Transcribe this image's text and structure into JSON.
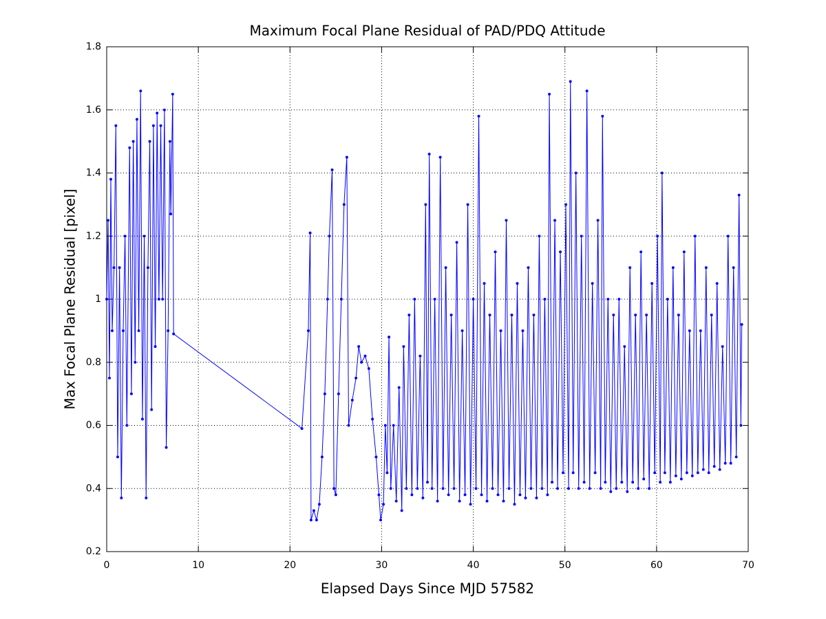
{
  "chart_data": {
    "type": "line",
    "title": "Maximum Focal Plane Residual of PAD/PDQ Attitude",
    "x_label": "Elapsed Days Since MJD 57582",
    "y_label": "Max Focal Plane Residual [pixel]",
    "xlim": [
      0,
      70
    ],
    "ylim": [
      0.2,
      1.8
    ],
    "xticks": [
      0,
      10,
      20,
      30,
      40,
      50,
      60,
      70
    ],
    "yticks": [
      0.2,
      0.4,
      0.6,
      0.8,
      1,
      1.2,
      1.4,
      1.6,
      1.8
    ],
    "grid": true,
    "series": [
      {
        "color": "#0000ff",
        "x": [
          0,
          0.15,
          0.3,
          0.45,
          0.6,
          0.8,
          1.0,
          1.2,
          1.4,
          1.6,
          1.8,
          2.0,
          2.2,
          2.5,
          2.7,
          2.9,
          3.1,
          3.3,
          3.5,
          3.7,
          3.9,
          4.1,
          4.3,
          4.5,
          4.7,
          4.9,
          5.1,
          5.3,
          5.5,
          5.7,
          5.9,
          6.1,
          6.3,
          6.5,
          6.7,
          6.9,
          7.0,
          7.2,
          7.3,
          21.3,
          22.0,
          22.2,
          22.3,
          22.6,
          22.9,
          23.2,
          23.5,
          23.8,
          24.1,
          24.3,
          24.6,
          24.8,
          25.0,
          25.3,
          25.6,
          25.9,
          26.2,
          26.4,
          26.8,
          27.2,
          27.5,
          27.8,
          28.2,
          28.6,
          29.0,
          29.4,
          29.7,
          29.9,
          30.2,
          30.4,
          30.6,
          30.8,
          31.0,
          31.3,
          31.6,
          31.9,
          32.2,
          32.4,
          32.7,
          33.0,
          33.3,
          33.6,
          33.9,
          34.2,
          34.5,
          34.8,
          35.0,
          35.2,
          35.5,
          35.8,
          36.1,
          36.4,
          36.7,
          37.0,
          37.3,
          37.6,
          37.9,
          38.2,
          38.5,
          38.8,
          39.1,
          39.4,
          39.7,
          40.0,
          40.3,
          40.6,
          40.9,
          41.2,
          41.5,
          41.8,
          42.1,
          42.4,
          42.7,
          43.0,
          43.3,
          43.6,
          43.9,
          44.2,
          44.5,
          44.8,
          45.1,
          45.4,
          45.7,
          46.0,
          46.3,
          46.6,
          46.9,
          47.2,
          47.5,
          47.8,
          48.1,
          48.3,
          48.6,
          48.9,
          49.2,
          49.5,
          49.8,
          50.1,
          50.4,
          50.6,
          50.9,
          51.2,
          51.5,
          51.8,
          52.1,
          52.4,
          52.7,
          53.0,
          53.3,
          53.6,
          53.9,
          54.1,
          54.4,
          54.7,
          55.0,
          55.3,
          55.6,
          55.9,
          56.2,
          56.5,
          56.8,
          57.1,
          57.4,
          57.7,
          58.0,
          58.3,
          58.6,
          58.9,
          59.2,
          59.5,
          59.8,
          60.1,
          60.4,
          60.6,
          60.9,
          61.2,
          61.5,
          61.8,
          62.1,
          62.4,
          62.7,
          63.0,
          63.3,
          63.6,
          63.9,
          64.2,
          64.5,
          64.8,
          65.1,
          65.4,
          65.7,
          66.0,
          66.3,
          66.6,
          66.9,
          67.2,
          67.5,
          67.8,
          68.1,
          68.4,
          68.7,
          69.0,
          69.2,
          69.3
        ],
        "values": [
          1.0,
          1.25,
          0.75,
          1.38,
          0.9,
          1.1,
          1.55,
          0.5,
          1.1,
          0.37,
          0.9,
          1.2,
          0.6,
          1.48,
          0.7,
          1.5,
          0.8,
          1.57,
          0.9,
          1.66,
          0.62,
          1.2,
          0.37,
          1.1,
          1.5,
          0.65,
          1.55,
          0.85,
          1.59,
          1.0,
          1.55,
          1.0,
          1.6,
          0.53,
          0.9,
          1.5,
          1.27,
          1.65,
          0.89,
          0.59,
          0.9,
          1.21,
          0.3,
          0.33,
          0.3,
          0.35,
          0.5,
          0.7,
          1.0,
          1.2,
          1.41,
          0.4,
          0.38,
          0.7,
          1.0,
          1.3,
          1.45,
          0.6,
          0.68,
          0.75,
          0.85,
          0.8,
          0.82,
          0.78,
          0.62,
          0.5,
          0.38,
          0.3,
          0.35,
          0.6,
          0.45,
          0.88,
          0.4,
          0.6,
          0.36,
          0.72,
          0.33,
          0.85,
          0.4,
          0.95,
          0.38,
          1.0,
          0.4,
          0.82,
          0.37,
          1.3,
          0.42,
          1.46,
          0.4,
          1.0,
          0.36,
          1.45,
          0.4,
          1.1,
          0.38,
          0.95,
          0.4,
          1.18,
          0.36,
          0.9,
          0.38,
          1.3,
          0.35,
          1.0,
          0.4,
          1.58,
          0.38,
          1.05,
          0.36,
          0.95,
          0.4,
          1.15,
          0.38,
          0.9,
          0.36,
          1.25,
          0.4,
          0.95,
          0.35,
          1.05,
          0.38,
          0.9,
          0.37,
          1.1,
          0.4,
          0.95,
          0.37,
          1.2,
          0.4,
          1.0,
          0.38,
          1.65,
          0.42,
          1.25,
          0.4,
          1.15,
          0.45,
          1.3,
          0.4,
          1.69,
          0.45,
          1.4,
          0.4,
          1.2,
          0.42,
          1.66,
          0.4,
          1.05,
          0.45,
          1.25,
          0.4,
          1.58,
          0.42,
          1.0,
          0.39,
          0.95,
          0.4,
          1.0,
          0.42,
          0.85,
          0.39,
          1.1,
          0.42,
          0.95,
          0.4,
          1.15,
          0.43,
          0.95,
          0.4,
          1.05,
          0.45,
          1.2,
          0.42,
          1.4,
          0.45,
          1.0,
          0.42,
          1.1,
          0.44,
          0.95,
          0.43,
          1.15,
          0.45,
          0.9,
          0.44,
          1.2,
          0.45,
          0.9,
          0.46,
          1.1,
          0.45,
          0.95,
          0.47,
          1.05,
          0.46,
          0.85,
          0.48,
          1.2,
          0.48,
          1.1,
          0.5,
          1.33,
          0.6,
          0.92
        ]
      }
    ]
  }
}
